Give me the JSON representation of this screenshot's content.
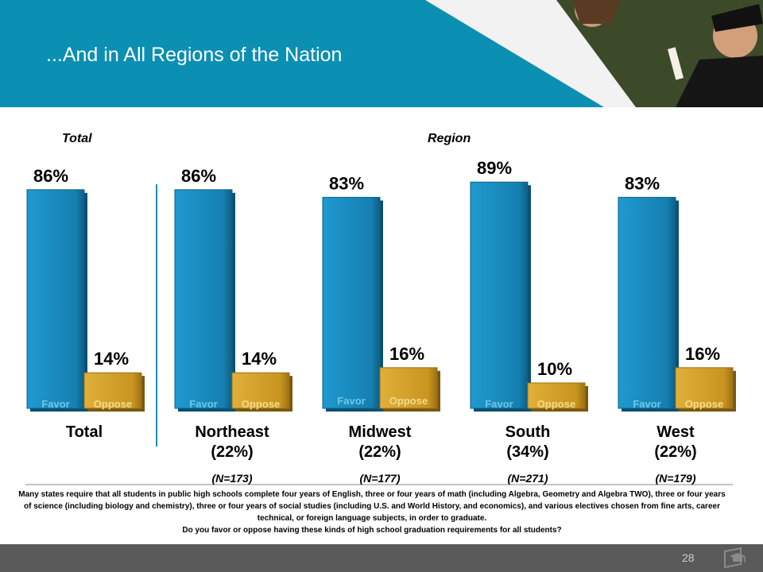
{
  "title": "...And in All Regions of the Nation",
  "page_number": "28",
  "colors": {
    "header": "#0b8fb3",
    "favor": "#1a8cbf",
    "oppose": "#d4a02c",
    "footer": "#5a5a5a"
  },
  "chart_data": {
    "type": "bar",
    "section_labels": {
      "total": "Total",
      "region": "Region"
    },
    "series": [
      {
        "name": "Favor",
        "values": [
          86,
          86,
          83,
          89,
          83
        ]
      },
      {
        "name": "Oppose",
        "values": [
          14,
          14,
          16,
          10,
          16
        ]
      }
    ],
    "value_labels": {
      "favor": [
        "86%",
        "86%",
        "83%",
        "89%",
        "83%"
      ],
      "oppose": [
        "14%",
        "14%",
        "16%",
        "10%",
        "16%"
      ]
    },
    "groups": [
      {
        "name": "Total",
        "share": "",
        "n": ""
      },
      {
        "name": "Northeast",
        "share": "(22%)",
        "n": "(N=173)"
      },
      {
        "name": "Midwest",
        "share": "(22%)",
        "n": "(N=177)"
      },
      {
        "name": "South",
        "share": "(34%)",
        "n": "(N=271)"
      },
      {
        "name": "West",
        "share": "(22%)",
        "n": "(N=179)"
      }
    ],
    "ylim": [
      0,
      100
    ]
  },
  "footnote": {
    "text": "Many states require that all students in public high schools complete four years of English, three or four years of math (including Algebra, Geometry and Algebra TWO), three or four years of science (including biology and chemistry), three or four years of social studies (including U.S. and World History, and economics), and various electives chosen from fine arts, career technical, or foreign language subjects, in order to graduate.",
    "question": "Do you favor or oppose having these kinds of high school graduation requirements for all students?"
  }
}
